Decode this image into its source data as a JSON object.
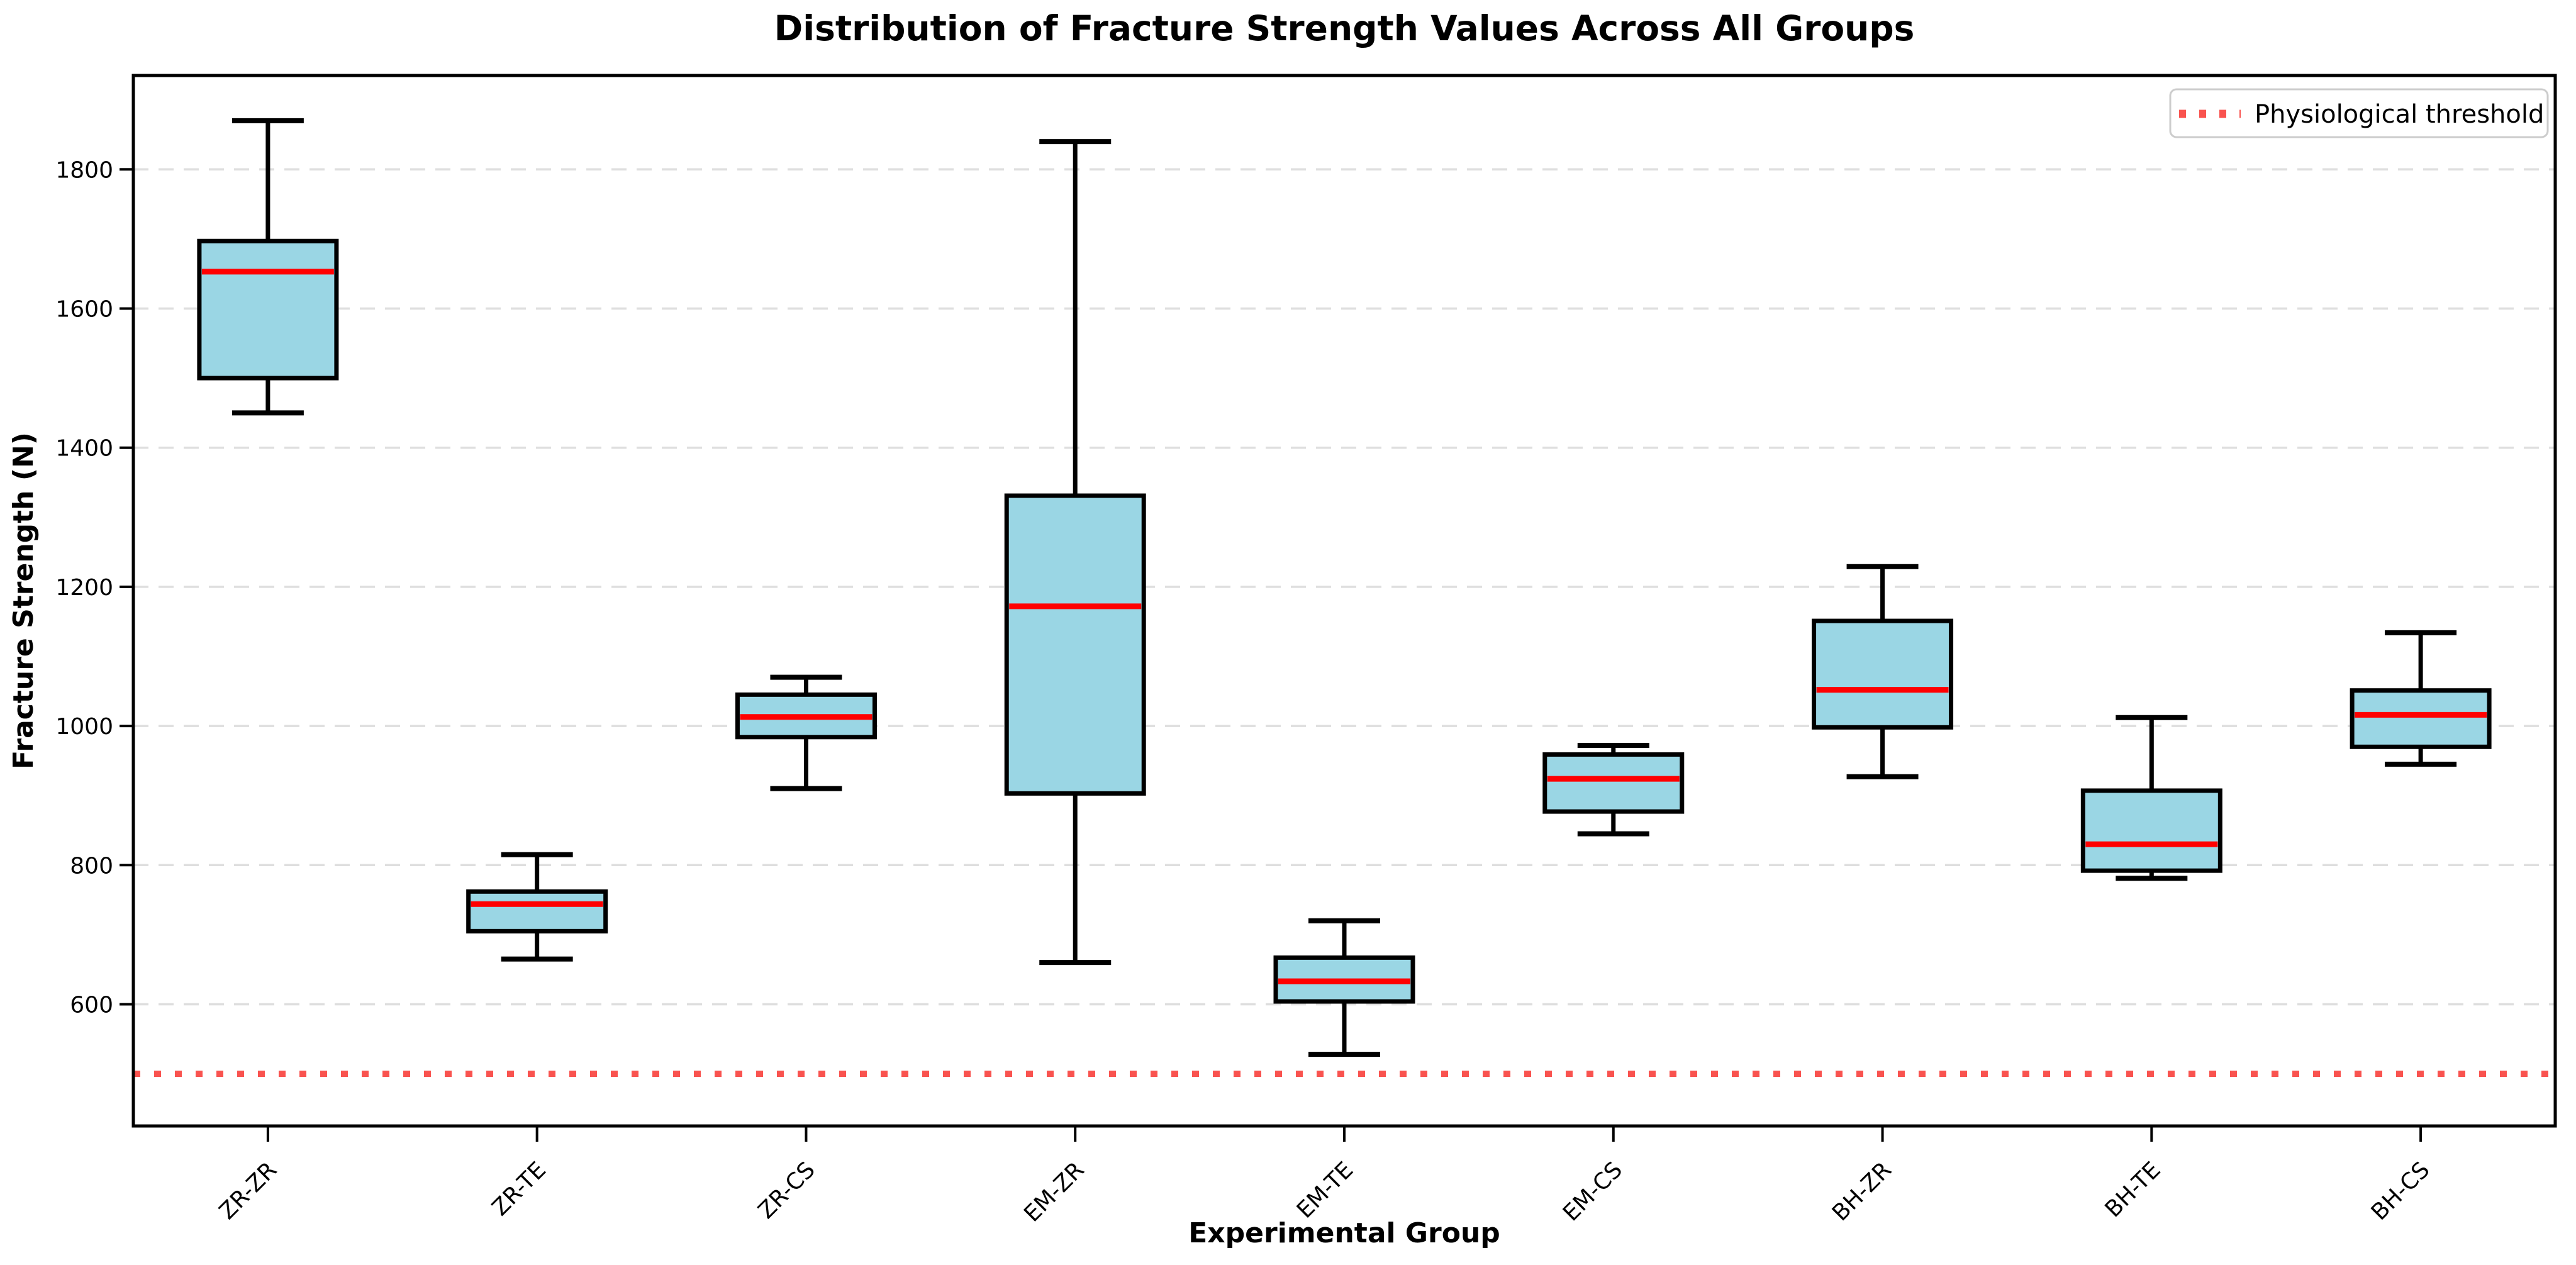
{
  "chart_data": {
    "type": "box",
    "title": "Distribution of Fracture Strength Values Across All Groups",
    "xlabel": "Experimental Group",
    "ylabel": "Fracture Strength (N)",
    "categories": [
      "ZR-ZR",
      "ZR-TE",
      "ZR-CS",
      "EM-ZR",
      "EM-TE",
      "EM-CS",
      "BH-ZR",
      "BH-TE",
      "BH-CS"
    ],
    "boxes": [
      {
        "group": "ZR-ZR",
        "whisker_low": 1450,
        "q1": 1500,
        "median": 1653,
        "q3": 1697,
        "whisker_high": 1870
      },
      {
        "group": "ZR-TE",
        "whisker_low": 665,
        "q1": 705,
        "median": 744,
        "q3": 762,
        "whisker_high": 815
      },
      {
        "group": "ZR-CS",
        "whisker_low": 910,
        "q1": 984,
        "median": 1013,
        "q3": 1045,
        "whisker_high": 1070
      },
      {
        "group": "EM-ZR",
        "whisker_low": 660,
        "q1": 903,
        "median": 1172,
        "q3": 1331,
        "whisker_high": 1840
      },
      {
        "group": "EM-TE",
        "whisker_low": 528,
        "q1": 604,
        "median": 633,
        "q3": 667,
        "whisker_high": 720
      },
      {
        "group": "EM-CS",
        "whisker_low": 845,
        "q1": 877,
        "median": 924,
        "q3": 959,
        "whisker_high": 972
      },
      {
        "group": "BH-ZR",
        "whisker_low": 927,
        "q1": 998,
        "median": 1052,
        "q3": 1151,
        "whisker_high": 1229
      },
      {
        "group": "BH-TE",
        "whisker_low": 781,
        "q1": 792,
        "median": 830,
        "q3": 907,
        "whisker_high": 1012
      },
      {
        "group": "BH-CS",
        "whisker_low": 945,
        "q1": 970,
        "median": 1016,
        "q3": 1051,
        "whisker_high": 1134
      }
    ],
    "threshold": {
      "value": 500,
      "label": "Physiological threshold"
    },
    "yticks": [
      600,
      800,
      1000,
      1200,
      1400,
      1600,
      1800
    ],
    "ylim": [
      425,
      1935
    ],
    "grid": true,
    "legend_position": "upper right",
    "colors": {
      "box_fill": "#9AD6E4",
      "box_edge": "#000000",
      "median": "#FF0000",
      "whisker": "#000000",
      "grid": "#DEDEDE",
      "threshold": "#F9534F",
      "legend_border": "#CCCCCC",
      "background": "#FFFFFF"
    }
  }
}
